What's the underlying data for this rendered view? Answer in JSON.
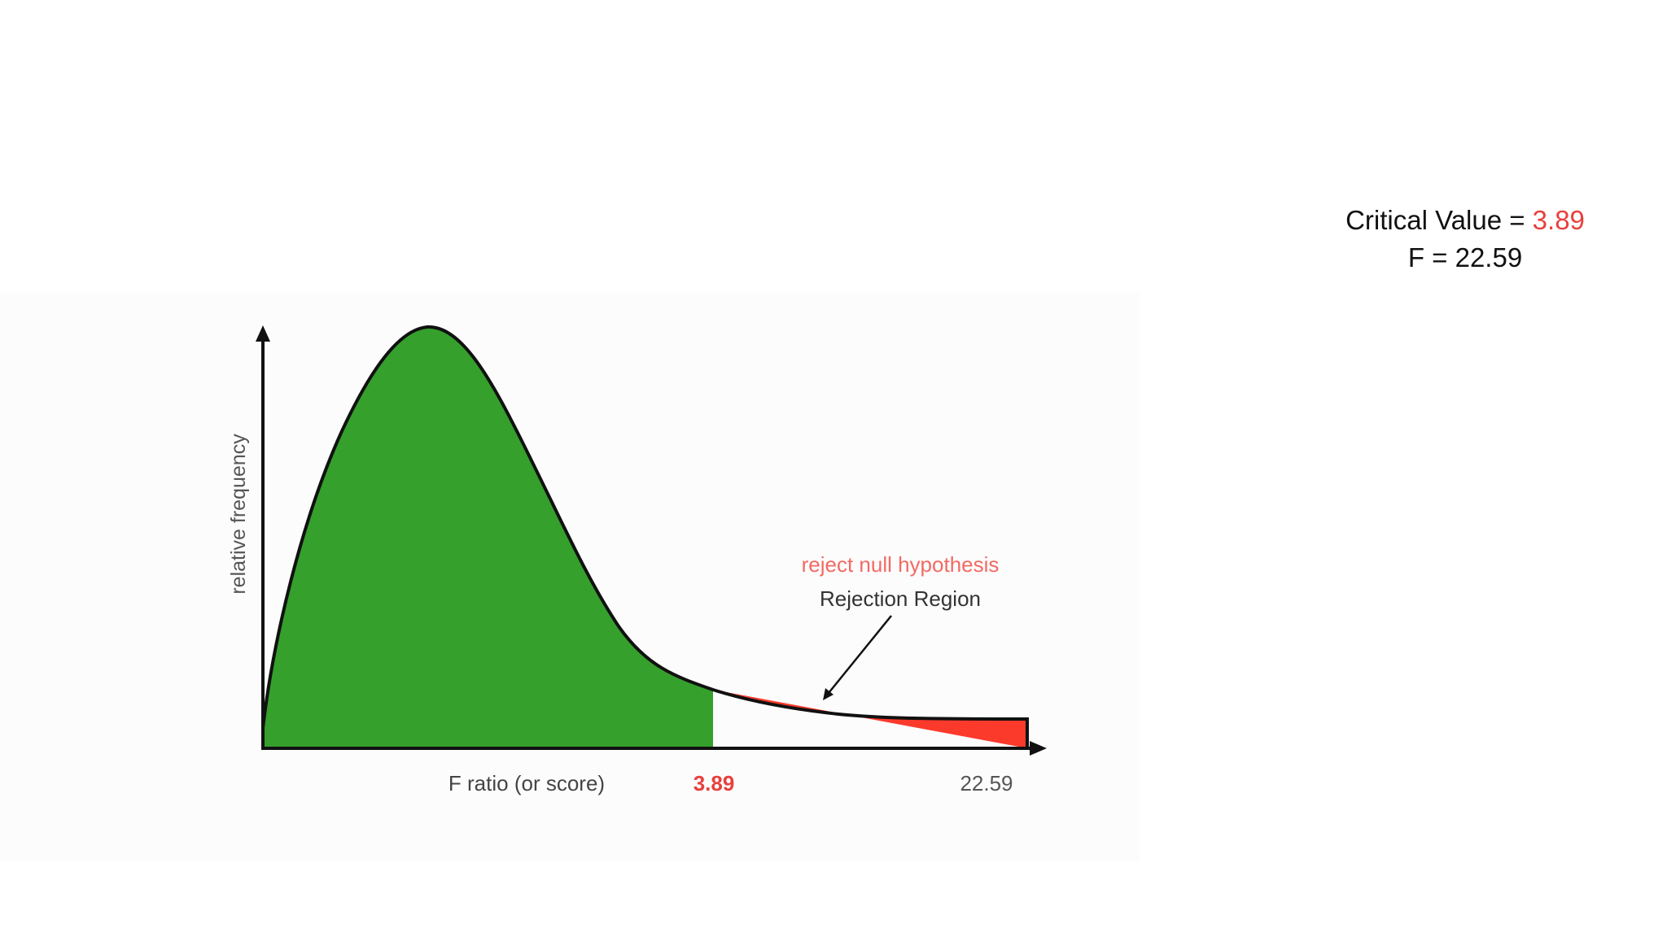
{
  "slide": {
    "critical_value_label": "Critical Value = ",
    "critical_value": "3.89",
    "f_value_label": "F = ",
    "f_value": "22.59"
  },
  "diagram": {
    "y_axis_label": "relative frequency",
    "x_axis_label": "F ratio (or score)",
    "critical_tick_label": "3.89",
    "f_tick_label": "22.59",
    "annotation_reject": "reject null hypothesis",
    "annotation_region": "Rejection Region",
    "colors": {
      "acceptance_region": "#35a02c",
      "rejection_region": "#fb3a2c",
      "critical_text": "#e8403d",
      "reject_text": "#f26a63",
      "axis": "#111111"
    }
  }
}
